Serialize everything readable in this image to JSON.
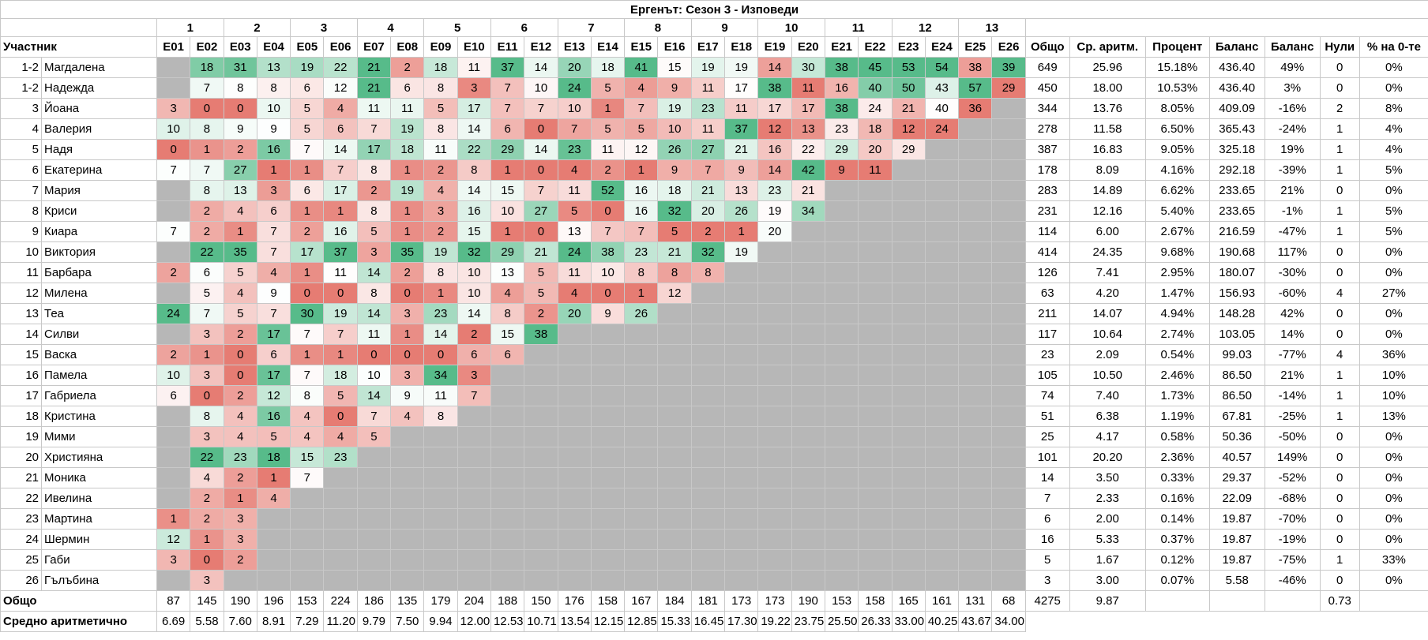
{
  "title": "Ергенът: Сезон 3 - Изповеди",
  "weeks": [
    "1",
    "2",
    "3",
    "4",
    "5",
    "6",
    "7",
    "8",
    "9",
    "10",
    "11",
    "12",
    "13"
  ],
  "columns": [
    "Участник",
    "E01",
    "E02",
    "E03",
    "E04",
    "E05",
    "E06",
    "E07",
    "E08",
    "E09",
    "E10",
    "E11",
    "E12",
    "E13",
    "E14",
    "E15",
    "E16",
    "E17",
    "E18",
    "E19",
    "E20",
    "E21",
    "E22",
    "E23",
    "E24",
    "E25",
    "E26",
    "Общо",
    "Ср. аритм.",
    "Процент",
    "Баланс",
    "Баланс",
    "Нули",
    "% на 0-те"
  ],
  "rows": [
    {
      "rank": "1-2",
      "name": "Магдалена",
      "episodes": [
        null,
        18,
        31,
        13,
        19,
        22,
        21,
        2,
        18,
        11,
        37,
        14,
        20,
        18,
        41,
        15,
        19,
        19,
        14,
        30,
        38,
        45,
        53,
        54,
        38,
        39
      ],
      "stats": [
        "649",
        "25.96",
        "15.18%",
        "436.40",
        "49%",
        "0",
        "0%"
      ]
    },
    {
      "rank": "1-2",
      "name": "Надежда",
      "episodes": [
        null,
        7,
        8,
        8,
        6,
        12,
        21,
        6,
        8,
        3,
        7,
        10,
        24,
        5,
        4,
        9,
        11,
        17,
        38,
        11,
        16,
        40,
        50,
        43,
        57,
        29
      ],
      "stats": [
        "450",
        "18.00",
        "10.53%",
        "436.40",
        "3%",
        "0",
        "0%"
      ]
    },
    {
      "rank": "3",
      "name": "Йоана",
      "episodes": [
        3,
        0,
        0,
        10,
        5,
        4,
        11,
        11,
        5,
        17,
        7,
        7,
        10,
        1,
        7,
        19,
        23,
        11,
        17,
        17,
        38,
        24,
        21,
        40,
        36,
        null
      ],
      "stats": [
        "344",
        "13.76",
        "8.05%",
        "409.09",
        "-16%",
        "2",
        "8%"
      ]
    },
    {
      "rank": "4",
      "name": "Валерия",
      "episodes": [
        10,
        8,
        9,
        9,
        5,
        6,
        7,
        19,
        8,
        14,
        6,
        0,
        7,
        5,
        5,
        10,
        11,
        37,
        12,
        13,
        23,
        18,
        12,
        24,
        null,
        null
      ],
      "stats": [
        "278",
        "11.58",
        "6.50%",
        "365.43",
        "-24%",
        "1",
        "4%"
      ]
    },
    {
      "rank": "5",
      "name": "Надя",
      "episodes": [
        0,
        1,
        2,
        16,
        7,
        14,
        17,
        18,
        11,
        22,
        29,
        14,
        23,
        11,
        12,
        26,
        27,
        21,
        16,
        22,
        29,
        20,
        29,
        null,
        null,
        null
      ],
      "stats": [
        "387",
        "16.83",
        "9.05%",
        "325.18",
        "19%",
        "1",
        "4%"
      ]
    },
    {
      "rank": "6",
      "name": "Екатерина",
      "episodes": [
        7,
        7,
        27,
        1,
        1,
        7,
        8,
        1,
        2,
        8,
        1,
        0,
        4,
        2,
        1,
        9,
        7,
        9,
        14,
        42,
        9,
        11,
        null,
        null,
        null,
        null
      ],
      "stats": [
        "178",
        "8.09",
        "4.16%",
        "292.18",
        "-39%",
        "1",
        "5%"
      ]
    },
    {
      "rank": "7",
      "name": "Мария",
      "episodes": [
        null,
        8,
        13,
        3,
        6,
        17,
        2,
        19,
        4,
        14,
        15,
        7,
        11,
        52,
        16,
        18,
        21,
        13,
        23,
        21,
        null,
        null,
        null,
        null,
        null,
        null
      ],
      "stats": [
        "283",
        "14.89",
        "6.62%",
        "233.65",
        "21%",
        "0",
        "0%"
      ]
    },
    {
      "rank": "8",
      "name": "Криси",
      "episodes": [
        null,
        2,
        4,
        6,
        1,
        1,
        8,
        1,
        3,
        16,
        10,
        27,
        5,
        0,
        16,
        32,
        20,
        26,
        19,
        34,
        null,
        null,
        null,
        null,
        null,
        null
      ],
      "stats": [
        "231",
        "12.16",
        "5.40%",
        "233.65",
        "-1%",
        "1",
        "5%"
      ]
    },
    {
      "rank": "9",
      "name": "Киара",
      "episodes": [
        7,
        2,
        1,
        7,
        2,
        16,
        5,
        1,
        2,
        15,
        1,
        0,
        13,
        7,
        7,
        5,
        2,
        1,
        20,
        null,
        null,
        null,
        null,
        null,
        null,
        null
      ],
      "stats": [
        "114",
        "6.00",
        "2.67%",
        "216.59",
        "-47%",
        "1",
        "5%"
      ]
    },
    {
      "rank": "10",
      "name": "Виктория",
      "episodes": [
        null,
        22,
        35,
        7,
        17,
        37,
        3,
        35,
        19,
        32,
        29,
        21,
        24,
        38,
        23,
        21,
        32,
        19,
        null,
        null,
        null,
        null,
        null,
        null,
        null,
        null
      ],
      "stats": [
        "414",
        "24.35",
        "9.68%",
        "190.68",
        "117%",
        "0",
        "0%"
      ]
    },
    {
      "rank": "11",
      "name": "Барбара",
      "episodes": [
        2,
        6,
        5,
        4,
        1,
        11,
        14,
        2,
        8,
        10,
        13,
        5,
        11,
        10,
        8,
        8,
        8,
        null,
        null,
        null,
        null,
        null,
        null,
        null,
        null,
        null
      ],
      "stats": [
        "126",
        "7.41",
        "2.95%",
        "180.07",
        "-30%",
        "0",
        "0%"
      ]
    },
    {
      "rank": "12",
      "name": "Милена",
      "episodes": [
        null,
        5,
        4,
        9,
        0,
        0,
        8,
        0,
        1,
        10,
        4,
        5,
        4,
        0,
        1,
        12,
        null,
        null,
        null,
        null,
        null,
        null,
        null,
        null,
        null,
        null
      ],
      "stats": [
        "63",
        "4.20",
        "1.47%",
        "156.93",
        "-60%",
        "4",
        "27%"
      ]
    },
    {
      "rank": "13",
      "name": "Теа",
      "episodes": [
        24,
        7,
        5,
        7,
        30,
        19,
        14,
        3,
        23,
        14,
        8,
        2,
        20,
        9,
        26,
        null,
        null,
        null,
        null,
        null,
        null,
        null,
        null,
        null,
        null,
        null
      ],
      "stats": [
        "211",
        "14.07",
        "4.94%",
        "148.28",
        "42%",
        "0",
        "0%"
      ]
    },
    {
      "rank": "14",
      "name": "Силви",
      "episodes": [
        null,
        3,
        2,
        17,
        7,
        7,
        11,
        1,
        14,
        2,
        15,
        38,
        null,
        null,
        null,
        null,
        null,
        null,
        null,
        null,
        null,
        null,
        null,
        null,
        null,
        null
      ],
      "stats": [
        "117",
        "10.64",
        "2.74%",
        "103.05",
        "14%",
        "0",
        "0%"
      ]
    },
    {
      "rank": "15",
      "name": "Васка",
      "episodes": [
        2,
        1,
        0,
        6,
        1,
        1,
        0,
        0,
        0,
        6,
        6,
        null,
        null,
        null,
        null,
        null,
        null,
        null,
        null,
        null,
        null,
        null,
        null,
        null,
        null,
        null
      ],
      "stats": [
        "23",
        "2.09",
        "0.54%",
        "99.03",
        "-77%",
        "4",
        "36%"
      ]
    },
    {
      "rank": "16",
      "name": "Памела",
      "episodes": [
        10,
        3,
        0,
        17,
        7,
        18,
        10,
        3,
        34,
        3,
        null,
        null,
        null,
        null,
        null,
        null,
        null,
        null,
        null,
        null,
        null,
        null,
        null,
        null,
        null,
        null
      ],
      "stats": [
        "105",
        "10.50",
        "2.46%",
        "86.50",
        "21%",
        "1",
        "10%"
      ]
    },
    {
      "rank": "17",
      "name": "Габриела",
      "episodes": [
        6,
        0,
        2,
        12,
        8,
        5,
        14,
        9,
        11,
        7,
        null,
        null,
        null,
        null,
        null,
        null,
        null,
        null,
        null,
        null,
        null,
        null,
        null,
        null,
        null,
        null
      ],
      "stats": [
        "74",
        "7.40",
        "1.73%",
        "86.50",
        "-14%",
        "1",
        "10%"
      ]
    },
    {
      "rank": "18",
      "name": "Кристина",
      "episodes": [
        null,
        8,
        4,
        16,
        4,
        0,
        7,
        4,
        8,
        null,
        null,
        null,
        null,
        null,
        null,
        null,
        null,
        null,
        null,
        null,
        null,
        null,
        null,
        null,
        null,
        null
      ],
      "stats": [
        "51",
        "6.38",
        "1.19%",
        "67.81",
        "-25%",
        "1",
        "13%"
      ]
    },
    {
      "rank": "19",
      "name": "Мими",
      "episodes": [
        null,
        3,
        4,
        5,
        4,
        4,
        5,
        null,
        null,
        null,
        null,
        null,
        null,
        null,
        null,
        null,
        null,
        null,
        null,
        null,
        null,
        null,
        null,
        null,
        null,
        null
      ],
      "stats": [
        "25",
        "4.17",
        "0.58%",
        "50.36",
        "-50%",
        "0",
        "0%"
      ]
    },
    {
      "rank": "20",
      "name": "Християна",
      "episodes": [
        null,
        22,
        23,
        18,
        15,
        23,
        null,
        null,
        null,
        null,
        null,
        null,
        null,
        null,
        null,
        null,
        null,
        null,
        null,
        null,
        null,
        null,
        null,
        null,
        null,
        null
      ],
      "stats": [
        "101",
        "20.20",
        "2.36%",
        "40.57",
        "149%",
        "0",
        "0%"
      ]
    },
    {
      "rank": "21",
      "name": "Моника",
      "episodes": [
        null,
        4,
        2,
        1,
        7,
        null,
        null,
        null,
        null,
        null,
        null,
        null,
        null,
        null,
        null,
        null,
        null,
        null,
        null,
        null,
        null,
        null,
        null,
        null,
        null,
        null
      ],
      "stats": [
        "14",
        "3.50",
        "0.33%",
        "29.37",
        "-52%",
        "0",
        "0%"
      ]
    },
    {
      "rank": "22",
      "name": "Ивелина",
      "episodes": [
        null,
        2,
        1,
        4,
        null,
        null,
        null,
        null,
        null,
        null,
        null,
        null,
        null,
        null,
        null,
        null,
        null,
        null,
        null,
        null,
        null,
        null,
        null,
        null,
        null,
        null
      ],
      "stats": [
        "7",
        "2.33",
        "0.16%",
        "22.09",
        "-68%",
        "0",
        "0%"
      ]
    },
    {
      "rank": "23",
      "name": "Мартина",
      "episodes": [
        1,
        2,
        3,
        null,
        null,
        null,
        null,
        null,
        null,
        null,
        null,
        null,
        null,
        null,
        null,
        null,
        null,
        null,
        null,
        null,
        null,
        null,
        null,
        null,
        null,
        null
      ],
      "stats": [
        "6",
        "2.00",
        "0.14%",
        "19.87",
        "-70%",
        "0",
        "0%"
      ]
    },
    {
      "rank": "24",
      "name": "Шермин",
      "episodes": [
        12,
        1,
        3,
        null,
        null,
        null,
        null,
        null,
        null,
        null,
        null,
        null,
        null,
        null,
        null,
        null,
        null,
        null,
        null,
        null,
        null,
        null,
        null,
        null,
        null,
        null
      ],
      "stats": [
        "16",
        "5.33",
        "0.37%",
        "19.87",
        "-19%",
        "0",
        "0%"
      ]
    },
    {
      "rank": "25",
      "name": "Габи",
      "episodes": [
        3,
        0,
        2,
        null,
        null,
        null,
        null,
        null,
        null,
        null,
        null,
        null,
        null,
        null,
        null,
        null,
        null,
        null,
        null,
        null,
        null,
        null,
        null,
        null,
        null,
        null
      ],
      "stats": [
        "5",
        "1.67",
        "0.12%",
        "19.87",
        "-75%",
        "1",
        "33%"
      ]
    },
    {
      "rank": "26",
      "name": "Гълъбина",
      "episodes": [
        null,
        3,
        null,
        null,
        null,
        null,
        null,
        null,
        null,
        null,
        null,
        null,
        null,
        null,
        null,
        null,
        null,
        null,
        null,
        null,
        null,
        null,
        null,
        null,
        null,
        null
      ],
      "stats": [
        "3",
        "3.00",
        "0.07%",
        "5.58",
        "-46%",
        "0",
        "0%"
      ]
    }
  ],
  "totals": {
    "label": "Общо",
    "episodes": [
      87,
      145,
      190,
      196,
      153,
      224,
      186,
      135,
      179,
      204,
      188,
      150,
      176,
      158,
      167,
      184,
      181,
      173,
      173,
      190,
      153,
      158,
      165,
      161,
      131,
      68
    ],
    "stats": [
      "4275",
      "9.87",
      null,
      null,
      null,
      "0.73",
      null
    ]
  },
  "averages": {
    "label": "Средно аритметично",
    "episodes": [
      "6.69",
      "5.58",
      "7.60",
      "8.91",
      "7.29",
      "11.20",
      "9.79",
      "7.50",
      "9.94",
      "12.00",
      "12.53",
      "10.71",
      "13.54",
      "12.15",
      "12.85",
      "15.33",
      "16.45",
      "17.30",
      "19.22",
      "23.75",
      "25.50",
      "26.33",
      "33.00",
      "40.25",
      "43.67",
      "34.00"
    ]
  }
}
